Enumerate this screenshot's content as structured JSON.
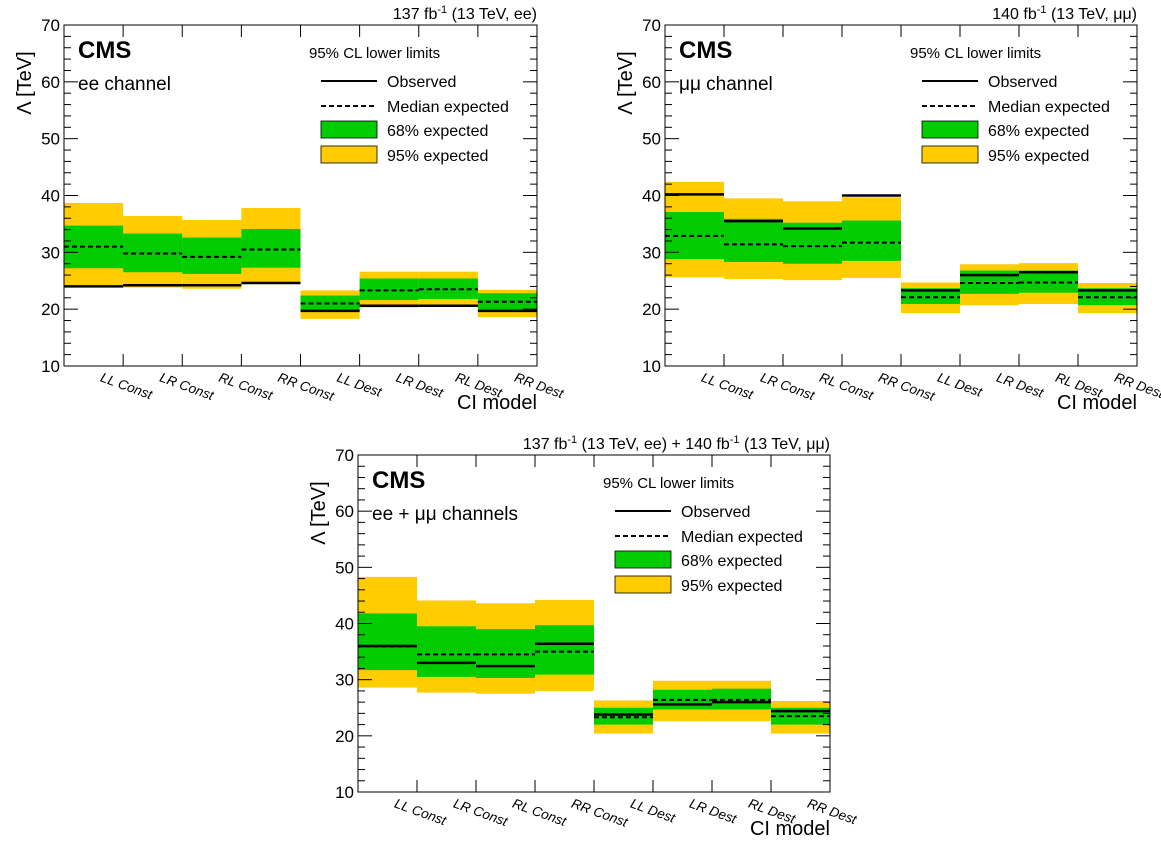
{
  "style": {
    "band95": "#FFCC00",
    "band68": "#00CC00",
    "line": "#000000"
  },
  "legend": {
    "header": "95% CL lower limits",
    "observed": "Observed",
    "expected": "Median expected",
    "band68": "68% expected",
    "band95": "95% expected"
  },
  "chart_data": [
    {
      "type": "bar",
      "experiment": "CMS",
      "channel": "ee channel",
      "lumi": {
        "pre": "137 fb",
        "sup": "-1",
        "post": " (13 TeV, ee)"
      },
      "ylabel": "Λ [TeV]",
      "xlabel": "CI model",
      "ylim": [
        10,
        70
      ],
      "yticks": [
        "10",
        "20",
        "30",
        "40",
        "50",
        "60",
        "70"
      ],
      "categories": [
        "LL Const",
        "LR Const",
        "RL Const",
        "RR Const",
        "LL Dest",
        "LR Dest",
        "RL Dest",
        "RR Dest"
      ],
      "observed": [
        24.0,
        24.2,
        24.2,
        24.6,
        19.7,
        20.6,
        20.6,
        19.7
      ],
      "expected": [
        31.0,
        29.8,
        29.2,
        30.5,
        21.0,
        23.3,
        23.5,
        21.3
      ],
      "band68": [
        [
          27.2,
          34.7
        ],
        [
          26.5,
          33.3
        ],
        [
          26.2,
          32.6
        ],
        [
          27.3,
          34.1
        ],
        [
          19.5,
          22.4
        ],
        [
          21.6,
          25.4
        ],
        [
          21.8,
          25.4
        ],
        [
          19.8,
          22.8
        ]
      ],
      "band95": [
        [
          24.2,
          38.7
        ],
        [
          23.8,
          36.4
        ],
        [
          23.6,
          35.7
        ],
        [
          24.5,
          37.8
        ],
        [
          18.3,
          23.3
        ],
        [
          20.3,
          26.6
        ],
        [
          20.5,
          26.6
        ],
        [
          18.6,
          23.4
        ]
      ]
    },
    {
      "type": "bar",
      "experiment": "CMS",
      "channel": "μμ channel",
      "lumi": {
        "pre": "140 fb",
        "sup": "-1",
        "post": " (13 TeV, μμ)"
      },
      "ylabel": "Λ [TeV]",
      "xlabel": "CI model",
      "ylim": [
        10,
        70
      ],
      "yticks": [
        "10",
        "20",
        "30",
        "40",
        "50",
        "60",
        "70"
      ],
      "categories": [
        "LL Const",
        "LR Const",
        "RL Const",
        "RR Const",
        "LL Dest",
        "LR Dest",
        "RL Dest",
        "RR Dest"
      ],
      "observed": [
        40.2,
        35.5,
        34.2,
        40.0,
        23.3,
        26.0,
        26.5,
        23.3
      ],
      "expected": [
        32.9,
        31.4,
        31.1,
        31.7,
        22.1,
        24.6,
        24.7,
        22.1
      ],
      "band68": [
        [
          28.8,
          37.1
        ],
        [
          28.3,
          35.9
        ],
        [
          28.0,
          35.2
        ],
        [
          28.5,
          35.6
        ],
        [
          20.9,
          23.7
        ],
        [
          22.7,
          26.8
        ],
        [
          22.9,
          26.8
        ],
        [
          20.7,
          23.7
        ]
      ],
      "band95": [
        [
          25.6,
          42.4
        ],
        [
          25.3,
          39.5
        ],
        [
          25.1,
          39.0
        ],
        [
          25.5,
          39.7
        ],
        [
          19.3,
          24.7
        ],
        [
          20.7,
          27.9
        ],
        [
          20.9,
          28.1
        ],
        [
          19.3,
          24.6
        ]
      ]
    },
    {
      "type": "bar",
      "experiment": "CMS",
      "channel": "ee + μμ channels",
      "lumi": {
        "pre": "137 fb",
        "sup": "-1",
        "post": " (13 TeV, ee) + ",
        "pre2": "140 fb",
        "sup2": "-1",
        "post2": " (13 TeV, μμ)"
      },
      "ylabel": "Λ [TeV]",
      "xlabel": "CI model",
      "ylim": [
        10,
        70
      ],
      "yticks": [
        "10",
        "20",
        "30",
        "40",
        "50",
        "60",
        "70"
      ],
      "categories": [
        "LL Const",
        "LR Const",
        "RL Const",
        "RR Const",
        "LL Dest",
        "LR Dest",
        "RL Dest",
        "RR Dest"
      ],
      "observed": [
        36.0,
        33.0,
        32.4,
        36.4,
        23.8,
        25.6,
        26.0,
        24.4
      ],
      "expected": [
        35.9,
        34.5,
        34.5,
        35.0,
        23.3,
        26.4,
        26.4,
        23.5
      ],
      "band68": [
        [
          31.7,
          41.8
        ],
        [
          30.5,
          39.5
        ],
        [
          30.3,
          39.0
        ],
        [
          30.9,
          39.7
        ],
        [
          22.0,
          25.0
        ],
        [
          24.7,
          28.2
        ],
        [
          24.7,
          28.4
        ],
        [
          22.0,
          25.0
        ]
      ],
      "band95": [
        [
          28.6,
          48.3
        ],
        [
          27.7,
          44.1
        ],
        [
          27.5,
          43.6
        ],
        [
          28.0,
          44.2
        ],
        [
          20.4,
          26.3
        ],
        [
          22.6,
          29.8
        ],
        [
          22.6,
          29.8
        ],
        [
          20.4,
          26.2
        ]
      ]
    }
  ]
}
